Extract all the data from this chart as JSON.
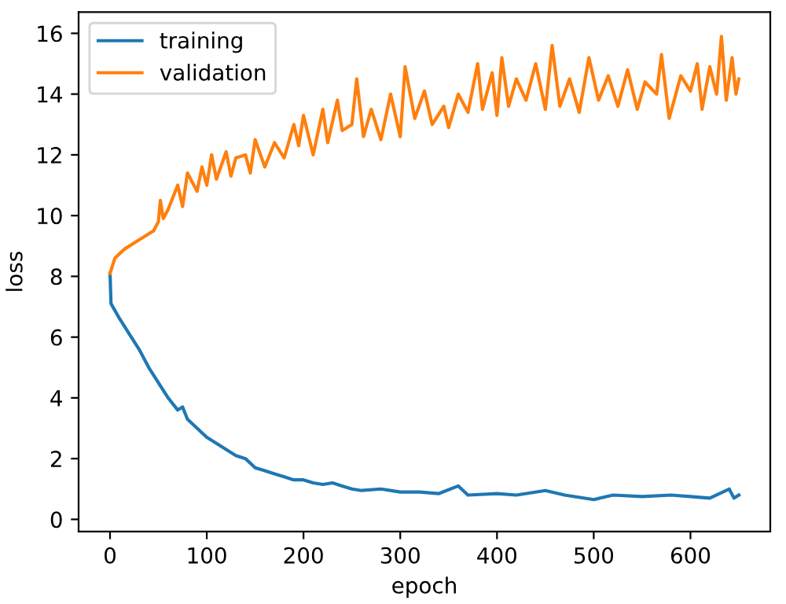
{
  "chart_data": {
    "type": "line",
    "xlabel": "epoch",
    "ylabel": "loss",
    "xlim": [
      -32.5,
      682.5
    ],
    "xticks": [
      0,
      100,
      200,
      300,
      400,
      500,
      600
    ],
    "ylim": [
      -0.4,
      16.7
    ],
    "yticks": [
      0,
      2,
      4,
      6,
      8,
      10,
      12,
      14,
      16
    ],
    "legend": "top left",
    "grid": false,
    "series": [
      {
        "name": "training",
        "color": "#1f77b4",
        "x": [
          0,
          1,
          10,
          20,
          30,
          40,
          50,
          60,
          70,
          75,
          80,
          90,
          100,
          110,
          120,
          130,
          140,
          150,
          160,
          170,
          180,
          190,
          200,
          210,
          220,
          230,
          240,
          250,
          260,
          280,
          300,
          320,
          340,
          360,
          370,
          400,
          420,
          450,
          470,
          500,
          520,
          550,
          580,
          600,
          620,
          640,
          645,
          650
        ],
        "values": [
          8.1,
          7.1,
          6.6,
          6.1,
          5.6,
          5.0,
          4.5,
          4.0,
          3.6,
          3.7,
          3.3,
          3.0,
          2.7,
          2.5,
          2.3,
          2.1,
          2.0,
          1.7,
          1.6,
          1.5,
          1.4,
          1.3,
          1.3,
          1.2,
          1.15,
          1.2,
          1.1,
          1.0,
          0.95,
          1.0,
          0.9,
          0.9,
          0.85,
          1.1,
          0.8,
          0.85,
          0.8,
          0.95,
          0.8,
          0.65,
          0.8,
          0.75,
          0.8,
          0.75,
          0.7,
          1.0,
          0.7,
          0.8
        ]
      },
      {
        "name": "validation",
        "color": "#ff7f0e",
        "x": [
          0,
          5,
          15,
          30,
          45,
          50,
          52,
          55,
          60,
          70,
          75,
          80,
          90,
          95,
          100,
          105,
          110,
          120,
          125,
          130,
          140,
          145,
          150,
          160,
          170,
          180,
          190,
          195,
          200,
          210,
          220,
          225,
          235,
          240,
          250,
          255,
          262,
          270,
          280,
          290,
          300,
          305,
          315,
          325,
          333,
          345,
          350,
          360,
          370,
          380,
          385,
          395,
          400,
          405,
          412,
          420,
          430,
          440,
          450,
          457,
          465,
          475,
          485,
          495,
          505,
          515,
          525,
          535,
          545,
          553,
          565,
          570,
          578,
          590,
          600,
          607,
          612,
          620,
          627,
          632,
          637,
          643,
          647,
          650
        ],
        "values": [
          8.1,
          8.6,
          8.9,
          9.2,
          9.5,
          9.8,
          10.5,
          9.9,
          10.2,
          11.0,
          10.3,
          11.4,
          10.8,
          11.6,
          11.0,
          12.0,
          11.2,
          12.1,
          11.3,
          11.9,
          12.0,
          11.4,
          12.5,
          11.6,
          12.4,
          11.9,
          13.0,
          12.3,
          13.3,
          12.0,
          13.5,
          12.4,
          13.8,
          12.8,
          13.0,
          14.5,
          12.6,
          13.5,
          12.5,
          14.0,
          12.6,
          14.9,
          13.2,
          14.1,
          13.0,
          13.6,
          12.9,
          14.0,
          13.4,
          15.0,
          13.5,
          14.7,
          13.3,
          15.2,
          13.6,
          14.5,
          13.8,
          15.0,
          13.5,
          15.6,
          13.6,
          14.5,
          13.4,
          15.2,
          13.8,
          14.6,
          13.6,
          14.8,
          13.5,
          14.4,
          14.0,
          15.3,
          13.2,
          14.6,
          14.1,
          15.0,
          13.5,
          14.9,
          14.0,
          15.9,
          13.8,
          15.2,
          14.0,
          14.5
        ]
      }
    ]
  }
}
